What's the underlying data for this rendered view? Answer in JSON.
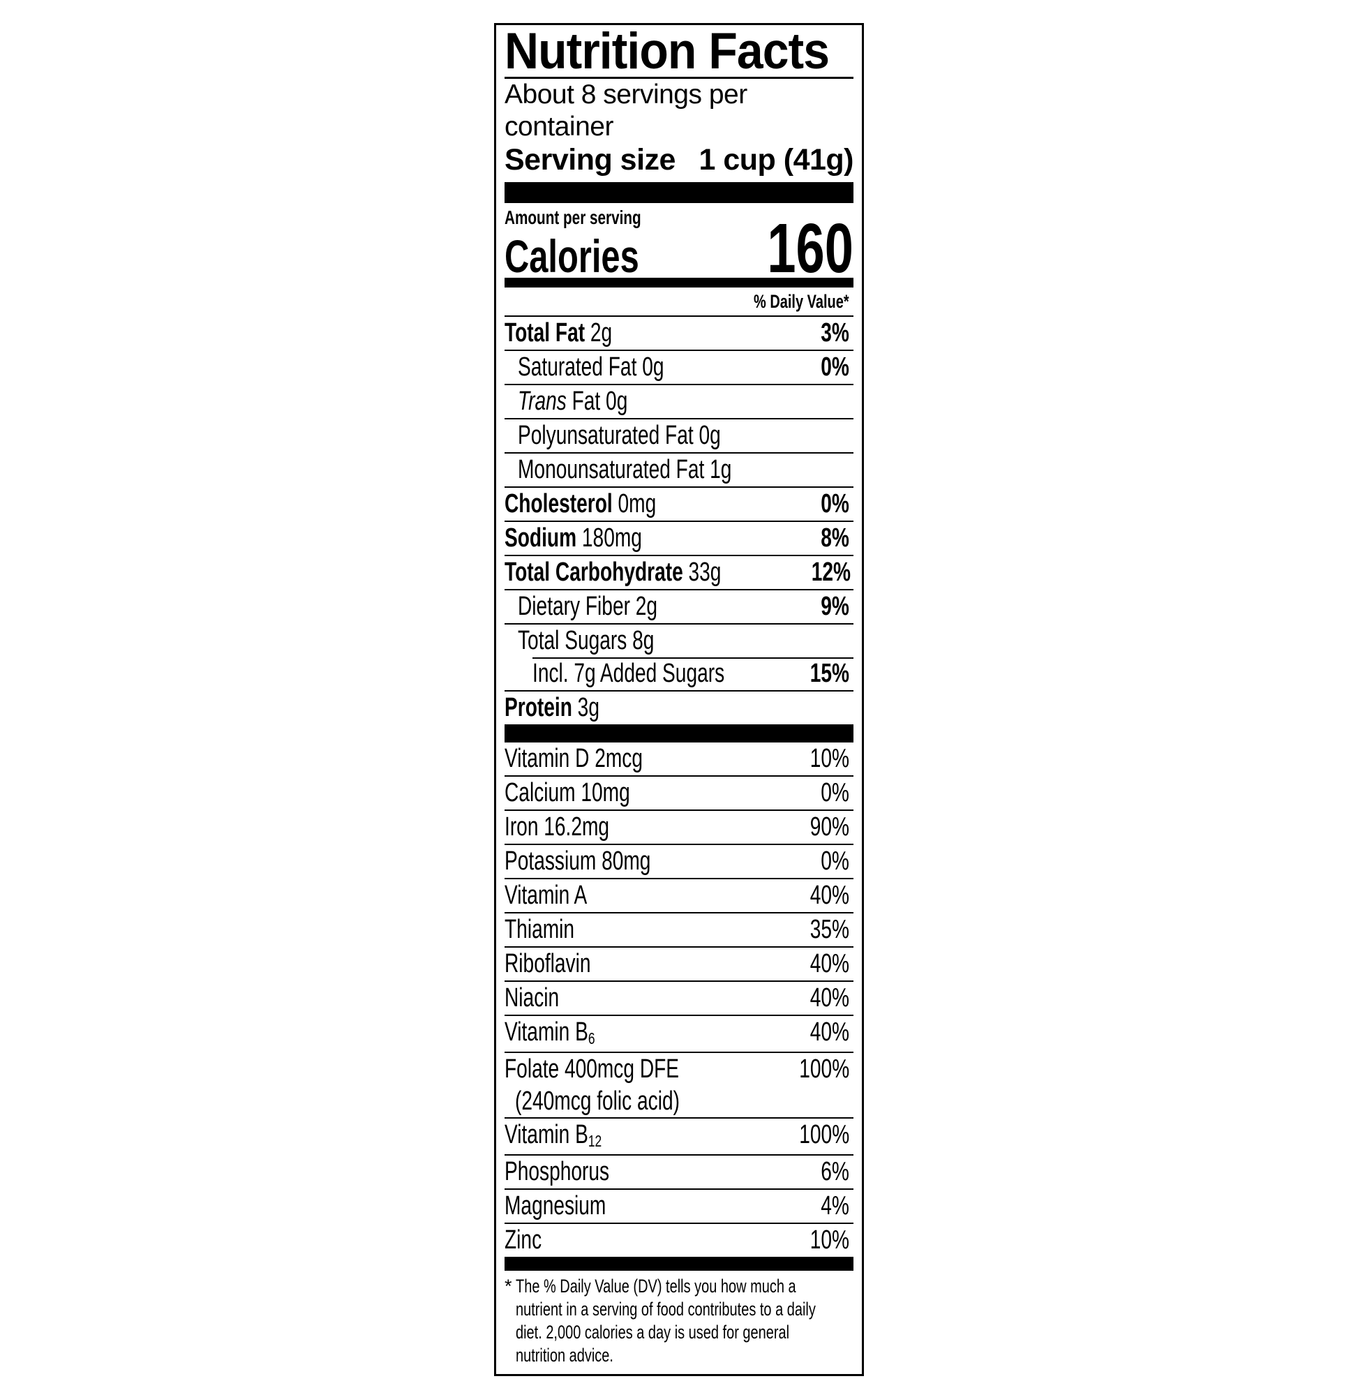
{
  "colors": {
    "text": "#000000",
    "background": "#ffffff"
  },
  "nf": {
    "title": "Nutrition Facts",
    "servings_per_container": "About 8 servings per container",
    "serving_size": {
      "label": "Serving size",
      "value": "1 cup (41g)"
    },
    "amount_per_serving": "Amount per serving",
    "calories": {
      "label": "Calories",
      "value": "160"
    },
    "daily_value_header": "% Daily Value*",
    "core": [
      {
        "lead": "Total Fat",
        "rest": " 2g",
        "dv": "3%"
      },
      {
        "name": "Saturated Fat 0g",
        "dv": "0%"
      },
      {
        "italic": "Trans",
        "rest": " Fat 0g"
      },
      {
        "name": "Polyunsaturated Fat 0g"
      },
      {
        "name": "Monounsaturated Fat 1g"
      },
      {
        "lead": "Cholesterol",
        "rest": " 0mg",
        "dv": "0%"
      },
      {
        "lead": "Sodium",
        "rest": " 180mg",
        "dv": "8%"
      },
      {
        "lead": "Total Carbohydrate",
        "rest": " 33g",
        "dv": "12%"
      },
      {
        "name": "Dietary Fiber 2g",
        "dv": "9%"
      },
      {
        "name": "Total Sugars 8g"
      },
      {
        "name": "Incl. 7g Added Sugars",
        "dv": "15%"
      },
      {
        "lead": "Protein",
        "rest": " 3g"
      }
    ],
    "vitamins": [
      {
        "name": "Vitamin D 2mcg",
        "dv": "10%"
      },
      {
        "name": "Calcium 10mg",
        "dv": "0%"
      },
      {
        "name": "Iron 16.2mg",
        "dv": "90%"
      },
      {
        "name": "Potassium 80mg",
        "dv": "0%"
      },
      {
        "name": "Vitamin A",
        "dv": "40%"
      },
      {
        "name": "Thiamin",
        "dv": "35%"
      },
      {
        "name": "Riboflavin",
        "dv": "40%"
      },
      {
        "name": "Niacin",
        "dv": "40%"
      },
      {
        "name": "Vitamin B",
        "sub": "6",
        "dv": "40%"
      },
      {
        "name": "Folate 400mcg DFE",
        "note": "(240mcg folic acid)",
        "dv": "100%"
      },
      {
        "name": "Vitamin B",
        "sub": "12",
        "dv": "100%"
      },
      {
        "name": "Phosphorus",
        "dv": "6%"
      },
      {
        "name": "Magnesium",
        "dv": "4%"
      },
      {
        "name": "Zinc",
        "dv": "10%"
      }
    ],
    "footnote": {
      "star": "*",
      "lines": [
        "The % Daily Value (DV) tells you how much a",
        "nutrient in a serving of food contributes to a daily",
        "diet. 2,000 calories a day is used for general",
        "nutrition advice."
      ]
    }
  }
}
